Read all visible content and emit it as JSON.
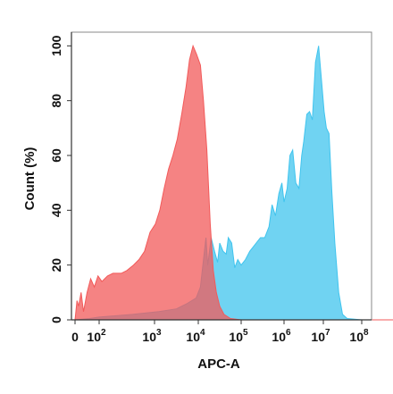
{
  "chart_data": {
    "type": "area",
    "xlabel": "APC-A",
    "ylabel": "Count (%)",
    "xscale": "biexponential",
    "ylim": [
      0,
      105
    ],
    "xlim_decades": [
      0,
      8
    ],
    "x_tick_labels": [
      {
        "base": "0",
        "exp": ""
      },
      {
        "base": "10",
        "exp": "2"
      },
      {
        "base": "10",
        "exp": "3"
      },
      {
        "base": "10",
        "exp": "4"
      },
      {
        "base": "10",
        "exp": "5"
      },
      {
        "base": "10",
        "exp": "6"
      },
      {
        "base": "10",
        "exp": "7"
      },
      {
        "base": "10",
        "exp": "8"
      }
    ],
    "y_ticks": [
      0,
      20,
      40,
      60,
      80,
      100
    ],
    "grid": false,
    "series": [
      {
        "color": "#40c4ee",
        "points": [
          [
            0,
            0
          ],
          [
            0.6,
            0.5
          ],
          [
            1.0,
            1
          ],
          [
            1.6,
            2
          ],
          [
            2.1,
            3
          ],
          [
            2.5,
            4
          ],
          [
            2.75,
            6
          ],
          [
            2.95,
            8
          ],
          [
            3.05,
            12
          ],
          [
            3.12,
            22
          ],
          [
            3.18,
            30
          ],
          [
            3.22,
            20
          ],
          [
            3.3,
            30
          ],
          [
            3.38,
            25
          ],
          [
            3.45,
            21
          ],
          [
            3.5,
            28
          ],
          [
            3.58,
            25
          ],
          [
            3.65,
            24
          ],
          [
            3.7,
            30
          ],
          [
            3.78,
            28
          ],
          [
            3.85,
            19
          ],
          [
            3.92,
            22
          ],
          [
            4.0,
            20
          ],
          [
            4.1,
            22
          ],
          [
            4.2,
            25
          ],
          [
            4.3,
            27
          ],
          [
            4.45,
            30
          ],
          [
            4.55,
            30
          ],
          [
            4.65,
            34
          ],
          [
            4.72,
            42
          ],
          [
            4.8,
            38
          ],
          [
            4.88,
            46
          ],
          [
            4.95,
            50
          ],
          [
            5.0,
            43
          ],
          [
            5.08,
            48
          ],
          [
            5.15,
            60
          ],
          [
            5.22,
            62
          ],
          [
            5.3,
            50
          ],
          [
            5.38,
            48
          ],
          [
            5.45,
            60
          ],
          [
            5.5,
            65
          ],
          [
            5.58,
            75
          ],
          [
            5.65,
            76
          ],
          [
            5.72,
            73
          ],
          [
            5.8,
            94
          ],
          [
            5.88,
            100
          ],
          [
            5.95,
            88
          ],
          [
            6.02,
            76
          ],
          [
            6.08,
            70
          ],
          [
            6.15,
            68
          ],
          [
            6.22,
            47
          ],
          [
            6.3,
            28
          ],
          [
            6.4,
            10
          ],
          [
            6.5,
            2
          ],
          [
            6.62,
            0.5
          ],
          [
            7.0,
            0
          ],
          [
            8.0,
            0
          ]
        ]
      },
      {
        "color": "#f25a5a",
        "points": [
          [
            0,
            0
          ],
          [
            0.08,
            7
          ],
          [
            0.15,
            5
          ],
          [
            0.25,
            10
          ],
          [
            0.35,
            3
          ],
          [
            0.5,
            10
          ],
          [
            0.65,
            15
          ],
          [
            0.8,
            12
          ],
          [
            0.95,
            16
          ],
          [
            1.05,
            14
          ],
          [
            1.15,
            16
          ],
          [
            1.25,
            17
          ],
          [
            1.4,
            17
          ],
          [
            1.5,
            18
          ],
          [
            1.62,
            20
          ],
          [
            1.72,
            22
          ],
          [
            1.82,
            25
          ],
          [
            1.92,
            32
          ],
          [
            2.02,
            35
          ],
          [
            2.12,
            40
          ],
          [
            2.22,
            48
          ],
          [
            2.32,
            55
          ],
          [
            2.42,
            60
          ],
          [
            2.52,
            66
          ],
          [
            2.62,
            75
          ],
          [
            2.72,
            85
          ],
          [
            2.8,
            95
          ],
          [
            2.88,
            100
          ],
          [
            2.96,
            97
          ],
          [
            3.05,
            93
          ],
          [
            3.12,
            80
          ],
          [
            3.2,
            62
          ],
          [
            3.28,
            35
          ],
          [
            3.35,
            18
          ],
          [
            3.42,
            10
          ],
          [
            3.5,
            5
          ],
          [
            3.6,
            2
          ],
          [
            3.75,
            0.5
          ],
          [
            4.0,
            0
          ],
          [
            8.0,
            0
          ]
        ]
      }
    ]
  }
}
